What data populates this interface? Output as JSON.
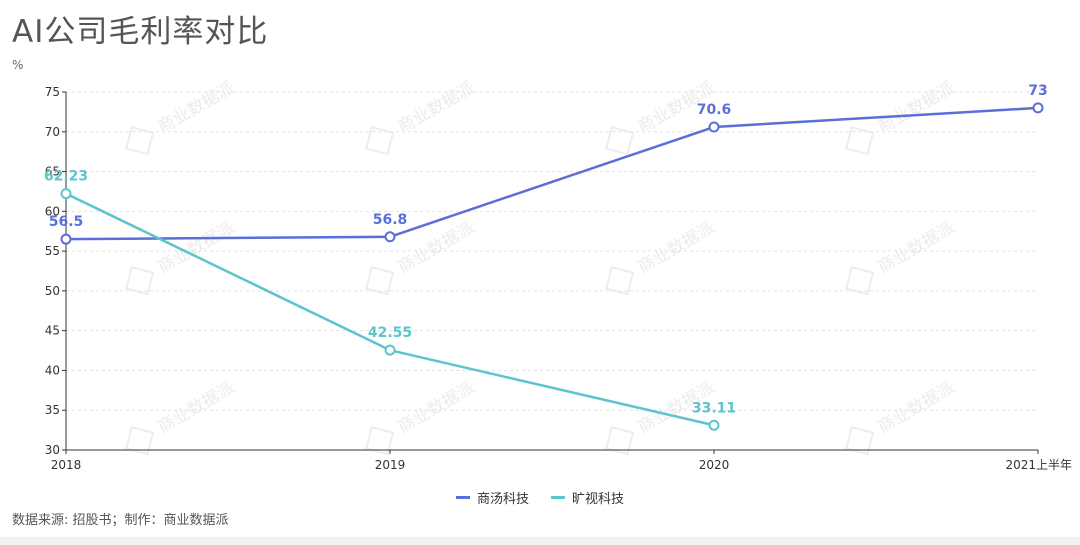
{
  "title": "AI公司毛利率对比",
  "unit_label": "%",
  "source": "数据来源: 招股书；制作：商业数据派",
  "watermark": "商业数据派",
  "chart_data": {
    "type": "line",
    "categories": [
      "2018",
      "2019",
      "2020",
      "2021上半年"
    ],
    "ylim": [
      30,
      75
    ],
    "yticks": [
      30,
      35,
      40,
      45,
      50,
      55,
      60,
      65,
      70,
      75
    ],
    "grid": true,
    "legend_position": "bottom",
    "series": [
      {
        "name": "商汤科技",
        "color": "#5b6fd9",
        "values": [
          56.5,
          56.8,
          70.6,
          73
        ],
        "labels": [
          "56.5",
          "56.8",
          "70.6",
          "73"
        ]
      },
      {
        "name": "旷视科技",
        "color": "#5bc4cc",
        "values": [
          62.23,
          42.55,
          33.11,
          null
        ],
        "labels": [
          "62.23",
          "42.55",
          "33.11",
          ""
        ]
      }
    ]
  }
}
